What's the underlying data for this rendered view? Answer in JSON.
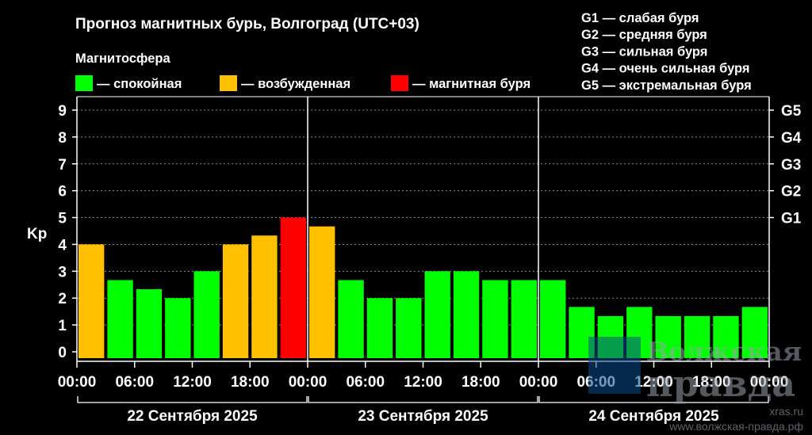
{
  "chart_data": {
    "type": "bar",
    "title": "Прогноз магнитных бурь, Волгоград (UTC+03)",
    "legend_title": "Магнитосфера",
    "legend": [
      {
        "label": "— спокойная",
        "color": "#00ff00"
      },
      {
        "label": "— возбужденная",
        "color": "#ffc000"
      },
      {
        "label": "— магнитная буря",
        "color": "#ff0000"
      }
    ],
    "g_scale": [
      "G1 — слабая буря",
      "G2 — средняя буря",
      "G3 — сильная буря",
      "G4 — очень сильная буря",
      "G5 — экстремальная буря"
    ],
    "ylabel": "Kp",
    "ylim": [
      0,
      9
    ],
    "y_ticks": [
      "0",
      "1",
      "2",
      "3",
      "4",
      "5",
      "6",
      "7",
      "8",
      "9"
    ],
    "right_ticks": [
      {
        "value": 5,
        "label": "G1"
      },
      {
        "value": 6,
        "label": "G2"
      },
      {
        "value": 7,
        "label": "G3"
      },
      {
        "value": 8,
        "label": "G4"
      },
      {
        "value": 9,
        "label": "G5"
      }
    ],
    "x_tick_labels": [
      "00:00",
      "06:00",
      "12:00",
      "18:00",
      "00:00",
      "06:00",
      "12:00",
      "18:00",
      "00:00",
      "06:00",
      "12:00",
      "18:00",
      "00:00"
    ],
    "days": [
      "22 Сентября 2025",
      "23 Сентября 2025",
      "24 Сентября 2025"
    ],
    "bars": [
      {
        "value": 4.0,
        "level": "excited"
      },
      {
        "value": 2.67,
        "level": "quiet"
      },
      {
        "value": 2.33,
        "level": "quiet"
      },
      {
        "value": 2.0,
        "level": "quiet"
      },
      {
        "value": 3.0,
        "level": "quiet"
      },
      {
        "value": 4.0,
        "level": "excited"
      },
      {
        "value": 4.33,
        "level": "excited"
      },
      {
        "value": 5.0,
        "level": "storm"
      },
      {
        "value": 4.67,
        "level": "excited"
      },
      {
        "value": 2.67,
        "level": "quiet"
      },
      {
        "value": 2.0,
        "level": "quiet"
      },
      {
        "value": 2.0,
        "level": "quiet"
      },
      {
        "value": 3.0,
        "level": "quiet"
      },
      {
        "value": 3.0,
        "level": "quiet"
      },
      {
        "value": 2.67,
        "level": "quiet"
      },
      {
        "value": 2.67,
        "level": "quiet"
      },
      {
        "value": 2.67,
        "level": "quiet"
      },
      {
        "value": 1.67,
        "level": "quiet"
      },
      {
        "value": 1.33,
        "level": "quiet"
      },
      {
        "value": 1.67,
        "level": "quiet"
      },
      {
        "value": 1.33,
        "level": "quiet"
      },
      {
        "value": 1.33,
        "level": "quiet"
      },
      {
        "value": 1.33,
        "level": "quiet"
      },
      {
        "value": 1.67,
        "level": "quiet"
      }
    ],
    "level_colors": {
      "quiet": "#00ff00",
      "excited": "#ffc000",
      "storm": "#ff0000"
    },
    "grid": true
  },
  "watermark": {
    "brand_line1": "Волжская",
    "brand_line2": "правда",
    "site": "xras.ru",
    "url": "www.волжская-правда.рф"
  }
}
